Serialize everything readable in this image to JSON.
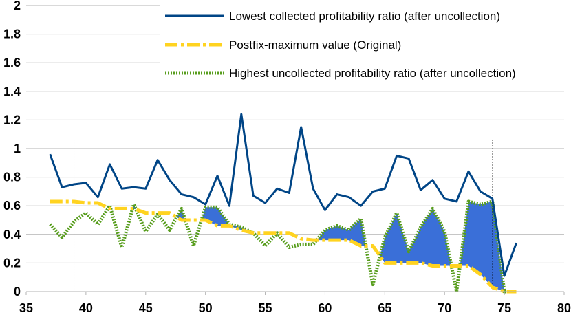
{
  "chart_data": {
    "type": "line",
    "title": "",
    "xlabel": "",
    "ylabel": "",
    "xlim": [
      35,
      80
    ],
    "ylim": [
      0,
      2
    ],
    "xticks": [
      35,
      40,
      45,
      50,
      55,
      60,
      65,
      70,
      75,
      80
    ],
    "yticks": [
      0,
      0.2,
      0.4,
      0.6,
      0.8,
      1,
      1.2,
      1.4,
      1.6,
      1.8,
      2
    ],
    "grid": "horizontal",
    "legend_position": "top-right",
    "vertical_markers": [
      39,
      74
    ],
    "series": [
      {
        "name": "Lowest collected profitability ratio (after uncollection)",
        "color": "#004586",
        "style": "solid",
        "x": [
          37,
          38,
          39,
          40,
          41,
          42,
          43,
          44,
          45,
          46,
          47,
          48,
          49,
          50,
          51,
          52,
          53,
          54,
          55,
          56,
          57,
          58,
          59,
          60,
          61,
          62,
          63,
          64,
          65,
          66,
          67,
          68,
          69,
          70,
          71,
          72,
          73,
          74,
          75,
          76
        ],
        "values": [
          0.96,
          0.73,
          0.75,
          0.76,
          0.66,
          0.89,
          0.72,
          0.73,
          0.72,
          0.92,
          0.78,
          0.68,
          0.66,
          0.61,
          0.81,
          0.6,
          1.24,
          0.67,
          0.62,
          0.72,
          0.69,
          1.15,
          0.72,
          0.57,
          0.68,
          0.66,
          0.6,
          0.7,
          0.72,
          0.95,
          0.93,
          0.71,
          0.78,
          0.65,
          0.63,
          0.84,
          0.7,
          0.65,
          0.11,
          0.34
        ]
      },
      {
        "name": "Postfix-maximum value (Original)",
        "color": "#ffd320",
        "style": "dashdot",
        "x": [
          37,
          38,
          39,
          40,
          41,
          42,
          43,
          44,
          45,
          46,
          47,
          48,
          49,
          50,
          51,
          52,
          53,
          54,
          55,
          56,
          57,
          58,
          59,
          60,
          61,
          62,
          63,
          64,
          65,
          66,
          67,
          68,
          69,
          70,
          71,
          72,
          73,
          74,
          75,
          76
        ],
        "values": [
          0.63,
          0.63,
          0.63,
          0.62,
          0.62,
          0.58,
          0.58,
          0.58,
          0.55,
          0.55,
          0.55,
          0.5,
          0.5,
          0.5,
          0.46,
          0.46,
          0.43,
          0.41,
          0.41,
          0.41,
          0.41,
          0.37,
          0.36,
          0.36,
          0.36,
          0.36,
          0.32,
          0.32,
          0.2,
          0.2,
          0.2,
          0.2,
          0.18,
          0.18,
          0.18,
          0.18,
          0.12,
          0.03,
          0.0,
          0.0
        ]
      },
      {
        "name": "Highest uncollected profitability ratio (after uncollection)",
        "color": "#579d1c",
        "style": "dotted",
        "x": [
          37,
          38,
          39,
          40,
          41,
          42,
          43,
          44,
          45,
          46,
          47,
          48,
          49,
          50,
          51,
          52,
          53,
          54,
          55,
          56,
          57,
          58,
          59,
          60,
          61,
          62,
          63,
          64,
          65,
          66,
          67,
          68,
          69,
          70,
          71,
          72,
          73,
          74,
          75,
          76
        ],
        "values": [
          0.47,
          0.38,
          0.49,
          0.55,
          0.47,
          0.6,
          0.31,
          0.61,
          0.42,
          0.54,
          0.43,
          0.58,
          0.32,
          0.59,
          0.59,
          0.47,
          0.45,
          0.41,
          0.32,
          0.41,
          0.31,
          0.33,
          0.33,
          0.43,
          0.46,
          0.43,
          0.51,
          0.05,
          0.38,
          0.55,
          0.28,
          0.45,
          0.58,
          0.42,
          0.0,
          0.63,
          0.61,
          0.63,
          0.0,
          0.0
        ]
      }
    ],
    "shaded_region": {
      "description": "Area where highest uncollected ratio exceeds postfix-maximum value",
      "color": "#3a6fd8"
    }
  }
}
